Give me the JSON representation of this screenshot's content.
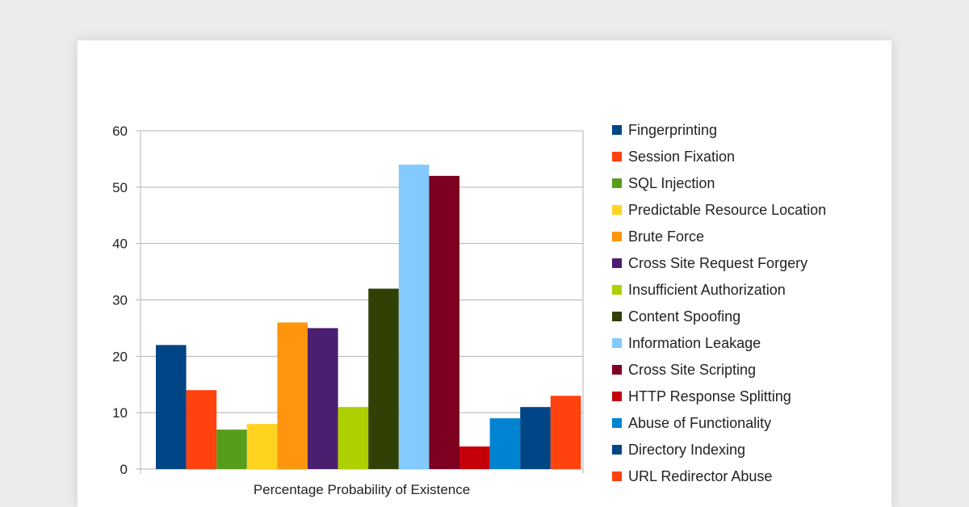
{
  "chart_data": {
    "type": "bar",
    "xlabel": "Percentage Probability of Existence",
    "ylim": [
      0,
      60
    ],
    "yticks": [
      0,
      10,
      20,
      30,
      40,
      50,
      60
    ],
    "grid": true,
    "legend_position": "right",
    "series": [
      {
        "name": "Fingerprinting",
        "values": [
          22
        ],
        "color": "#004586"
      },
      {
        "name": "Session Fixation",
        "values": [
          14
        ],
        "color": "#ff420e"
      },
      {
        "name": "SQL Injection",
        "values": [
          7
        ],
        "color": "#579d1c"
      },
      {
        "name": "Predictable Resource Location",
        "values": [
          8
        ],
        "color": "#ffd320"
      },
      {
        "name": "Brute Force",
        "values": [
          26
        ],
        "color": "#ff950e"
      },
      {
        "name": "Cross Site Request Forgery",
        "values": [
          25
        ],
        "color": "#4b1f6f"
      },
      {
        "name": "Insufficient Authorization",
        "values": [
          11
        ],
        "color": "#aecf00"
      },
      {
        "name": "Content Spoofing",
        "values": [
          32
        ],
        "color": "#314004"
      },
      {
        "name": "Information Leakage",
        "values": [
          54
        ],
        "color": "#83caff"
      },
      {
        "name": "Cross Site Scripting",
        "values": [
          52
        ],
        "color": "#7e0021"
      },
      {
        "name": "HTTP Response Splitting",
        "values": [
          4
        ],
        "color": "#c5000b"
      },
      {
        "name": "Abuse of Functionality",
        "values": [
          9
        ],
        "color": "#0084d1"
      },
      {
        "name": "Directory Indexing",
        "values": [
          11
        ],
        "color": "#004586"
      },
      {
        "name": "URL Redirector Abuse",
        "values": [
          13
        ],
        "color": "#ff420e"
      }
    ]
  }
}
